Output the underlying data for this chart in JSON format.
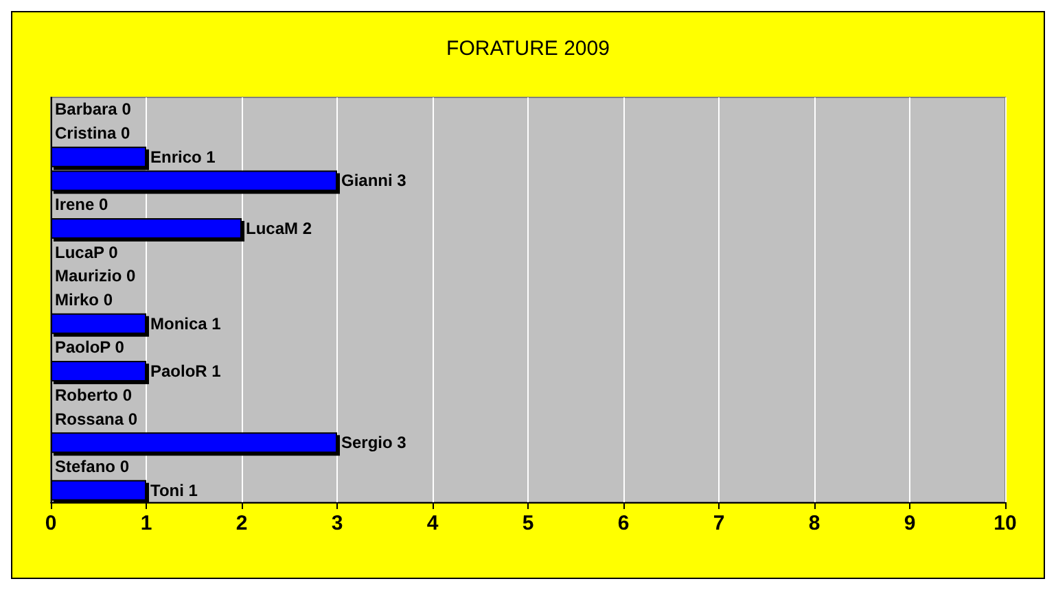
{
  "chart_data": {
    "type": "bar",
    "orientation": "horizontal",
    "title": "FORATURE 2009",
    "categories": [
      "Barbara",
      "Cristina",
      "Enrico",
      "Gianni",
      "Irene",
      "LucaM",
      "LucaP",
      "Maurizio",
      "Mirko",
      "Monica",
      "PaoloP",
      "PaoloR",
      "Roberto",
      "Rossana",
      "Sergio",
      "Stefano",
      "Toni"
    ],
    "values": [
      0,
      0,
      1,
      3,
      0,
      2,
      0,
      0,
      0,
      1,
      0,
      1,
      0,
      0,
      3,
      0,
      1
    ],
    "color": "#0000ff",
    "xlim": [
      0,
      10
    ],
    "xticks": [
      0,
      1,
      2,
      3,
      4,
      5,
      6,
      7,
      8,
      9,
      10
    ],
    "value_labels": [
      "0",
      "0",
      "1",
      "3",
      "0",
      "2",
      "0",
      "0",
      "0",
      "1",
      "0",
      "1",
      "0",
      "0",
      "3",
      "0",
      "1"
    ],
    "grid": "x",
    "tick_labels": "x"
  }
}
